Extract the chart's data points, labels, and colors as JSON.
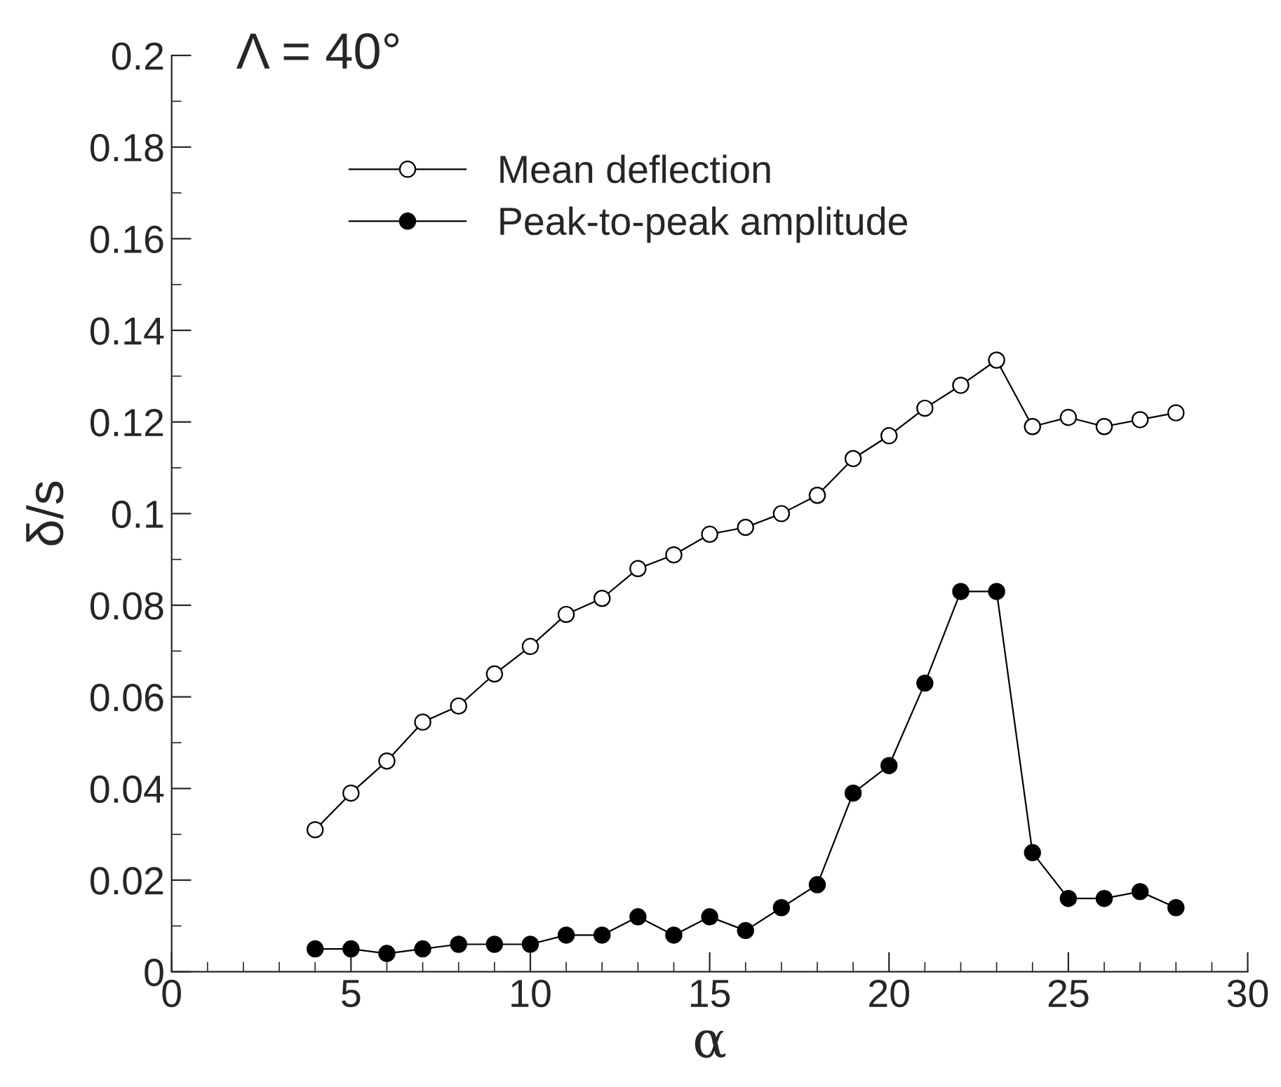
{
  "chart_data": {
    "type": "line",
    "xlabel": "α",
    "ylabel": "δ/s",
    "annotations": [
      "Λ = 40°"
    ],
    "x": [
      4,
      5,
      6,
      7,
      8,
      9,
      10,
      11,
      12,
      13,
      14,
      15,
      16,
      17,
      18,
      19,
      20,
      21,
      22,
      23,
      24,
      25,
      26,
      27,
      28
    ],
    "series": [
      {
        "name": "Mean deflection",
        "color": "#ffffff",
        "marker": "circle",
        "values": [
          0.031,
          0.039,
          0.046,
          0.0545,
          0.058,
          0.065,
          0.071,
          0.078,
          0.0815,
          0.088,
          0.091,
          0.0955,
          0.097,
          0.1,
          0.104,
          0.112,
          0.117,
          0.123,
          0.128,
          0.1335,
          0.119,
          0.121,
          0.119,
          0.1205,
          0.122
        ]
      },
      {
        "name": "Peak-to-peak amplitude",
        "color": "#000000",
        "marker": "circle",
        "values": [
          0.005,
          0.005,
          0.004,
          0.005,
          0.006,
          0.006,
          0.006,
          0.008,
          0.008,
          0.012,
          0.008,
          0.012,
          0.009,
          0.014,
          0.019,
          0.039,
          0.045,
          0.063,
          0.083,
          0.083,
          0.026,
          0.016,
          0.016,
          0.0175,
          0.014
        ]
      }
    ],
    "xlim": [
      0,
      30
    ],
    "xticks": [
      0,
      5,
      10,
      15,
      20,
      25,
      30
    ],
    "ylim": [
      0,
      0.2
    ],
    "yticks": [
      0,
      0.02,
      0.04,
      0.06,
      0.08,
      0.1,
      0.12,
      0.14,
      0.16,
      0.18,
      0.2
    ],
    "grid": false,
    "legend": "top",
    "line_style": "solid"
  }
}
